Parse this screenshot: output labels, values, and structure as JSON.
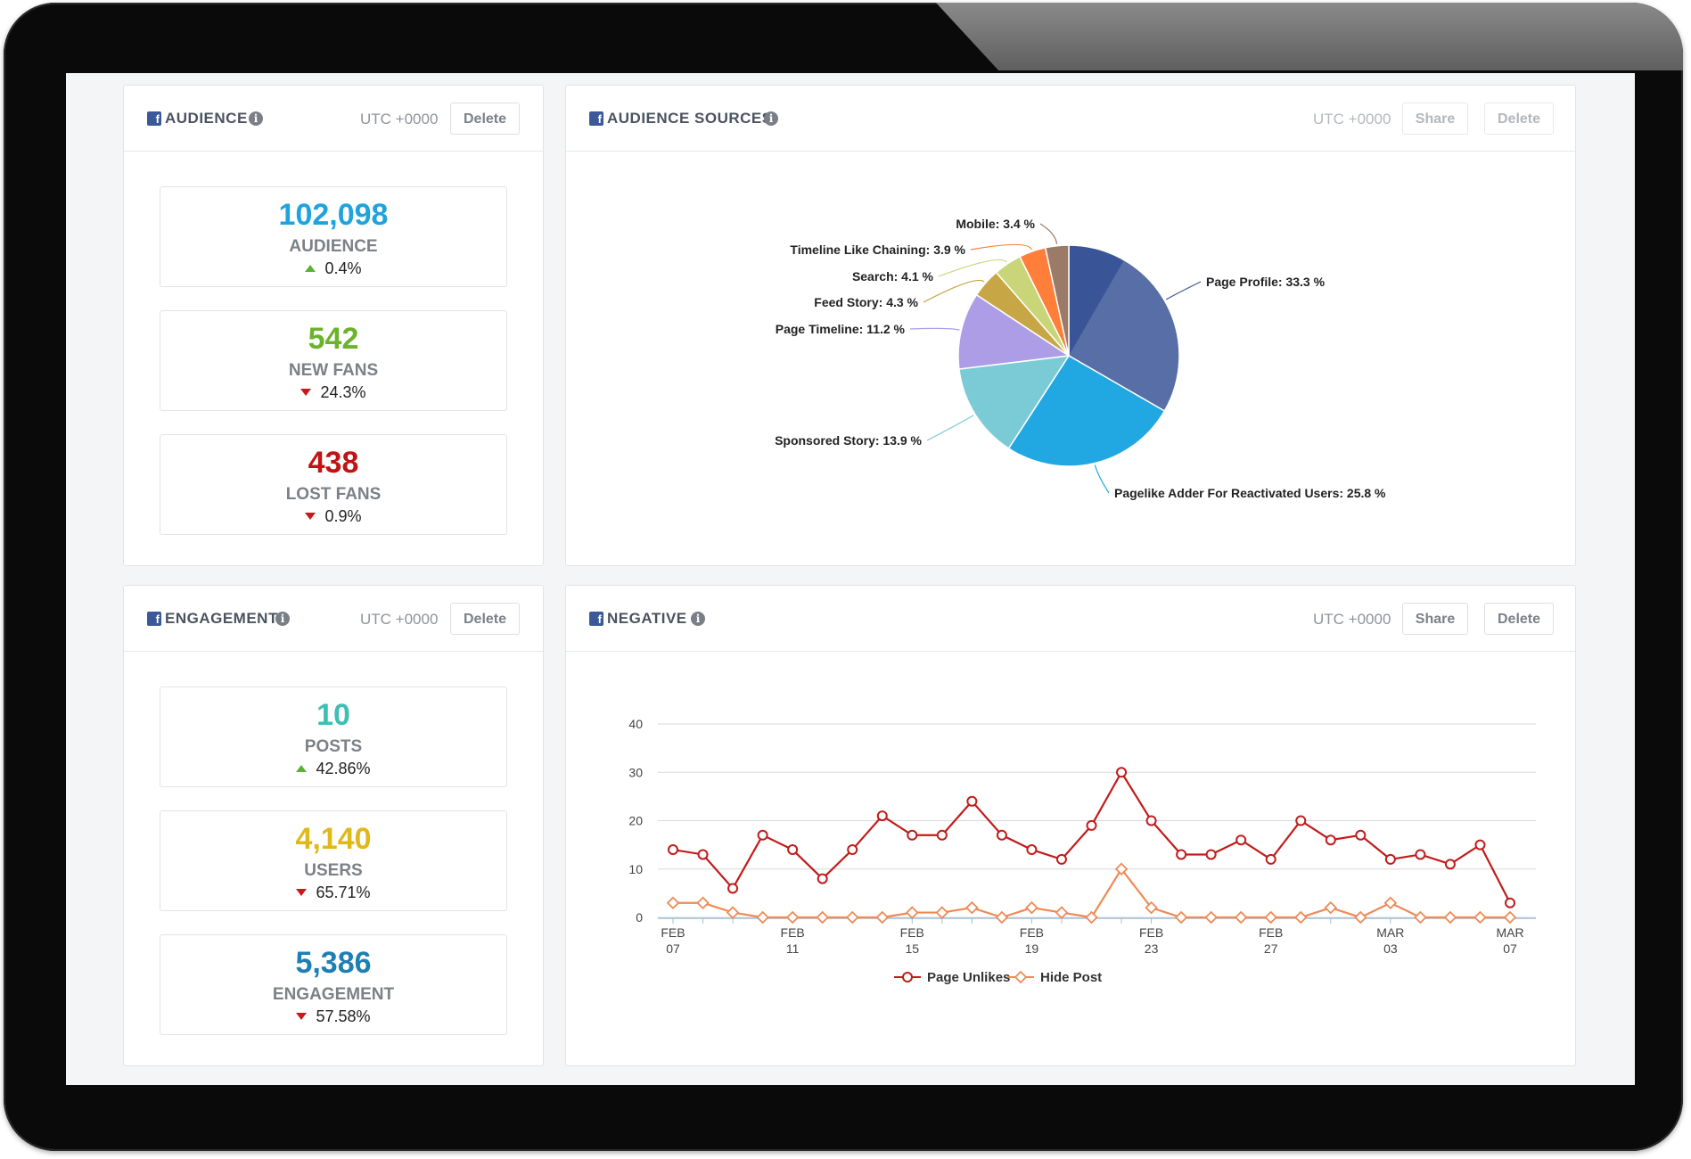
{
  "colors": {
    "audience": "#1fa3dd",
    "new_fans": "#6cb32c",
    "lost_fans": "#c21313",
    "posts": "#3ebfb4",
    "users": "#e0b81a",
    "engagement": "#1e7fb3",
    "facebook": "#3b5998",
    "up": "#5cb332",
    "down": "#c61b1b"
  },
  "audience_panel": {
    "title": "AUDIENCE",
    "icon": "facebook-icon",
    "utc": "UTC +0000",
    "delete_label": "Delete",
    "stats": [
      {
        "value": "102,098",
        "label": "AUDIENCE",
        "change": "0.4%",
        "trend": "up"
      },
      {
        "value": "542",
        "label": "NEW FANS",
        "change": "24.3%",
        "trend": "down"
      },
      {
        "value": "438",
        "label": "LOST FANS",
        "change": "0.9%",
        "trend": "down"
      }
    ]
  },
  "engagement_panel": {
    "title": "ENGAGEMENT",
    "icon": "facebook-icon",
    "utc": "UTC +0000",
    "delete_label": "Delete",
    "stats": [
      {
        "value": "10",
        "label": "POSTS",
        "change": "42.86%",
        "trend": "up"
      },
      {
        "value": "4,140",
        "label": "USERS",
        "change": "65.71%",
        "trend": "down"
      },
      {
        "value": "5,386",
        "label": "ENGAGEMENT",
        "change": "57.58%",
        "trend": "down"
      }
    ]
  },
  "sources_panel": {
    "title": "AUDIENCE SOURCES",
    "utc": "UTC +0000",
    "share_label": "Share",
    "delete_label": "Delete"
  },
  "negative_panel": {
    "title": "NEGATIVE",
    "utc": "UTC +0000",
    "share_label": "Share",
    "delete_label": "Delete"
  },
  "chart_data": [
    {
      "type": "pie",
      "slices": [
        {
          "name": "Page Profile",
          "value": 33.3,
          "label": "Page Profile: 33.3 %",
          "color": "#3a5597"
        },
        {
          "name": "Pagelike Adder For Reactivated Users",
          "value": 25.8,
          "label": "Pagelike Adder For Reactivated Users: 25.8 %",
          "color": "#21a7e2"
        },
        {
          "name": "Sponsored Story",
          "value": 13.9,
          "label": "Sponsored Story: 13.9 %",
          "color": "#7bcbd7"
        },
        {
          "name": "Page Timeline",
          "value": 11.2,
          "label": "Page Timeline: 11.2 %",
          "color": "#ac9de6"
        },
        {
          "name": "Feed Story",
          "value": 4.3,
          "label": "Feed Story: 4.3 %",
          "color": "#c7a645"
        },
        {
          "name": "Search",
          "value": 4.1,
          "label": "Search: 4.1 %",
          "color": "#c8d679"
        },
        {
          "name": "Timeline Like Chaining",
          "value": 3.9,
          "label": "Timeline Like Chaining: 3.9 %",
          "color": "#ff7f3a"
        },
        {
          "name": "Mobile",
          "value": 3.4,
          "label": "Mobile: 3.4 %",
          "color": "#9b7a68"
        }
      ]
    },
    {
      "type": "line",
      "x": [
        "FEB 07",
        "FEB 08",
        "FEB 09",
        "FEB 10",
        "FEB 11",
        "FEB 12",
        "FEB 13",
        "FEB 14",
        "FEB 15",
        "FEB 16",
        "FEB 17",
        "FEB 18",
        "FEB 19",
        "FEB 20",
        "FEB 21",
        "FEB 22",
        "FEB 23",
        "FEB 24",
        "FEB 25",
        "FEB 26",
        "FEB 27",
        "FEB 28",
        "MAR 01",
        "MAR 02",
        "MAR 03",
        "MAR 04",
        "MAR 05",
        "MAR 06",
        "MAR 07"
      ],
      "tick_labels": [
        {
          "top": "FEB",
          "bottom": "07",
          "index": 0
        },
        {
          "top": "FEB",
          "bottom": "11",
          "index": 4
        },
        {
          "top": "FEB",
          "bottom": "15",
          "index": 8
        },
        {
          "top": "FEB",
          "bottom": "19",
          "index": 12
        },
        {
          "top": "FEB",
          "bottom": "23",
          "index": 16
        },
        {
          "top": "FEB",
          "bottom": "27",
          "index": 20
        },
        {
          "top": "MAR",
          "bottom": "03",
          "index": 24
        },
        {
          "top": "MAR",
          "bottom": "07",
          "index": 28
        }
      ],
      "ylim": [
        0,
        40
      ],
      "yticks": [
        "0",
        "10",
        "20",
        "30",
        "40"
      ],
      "grid": true,
      "legend_placement": "bottom-center",
      "series": [
        {
          "name": "Page Unlikes",
          "color": "#c21b1b",
          "marker": "circle",
          "values": [
            14,
            13,
            6,
            17,
            14,
            8,
            14,
            21,
            17,
            17,
            24,
            17,
            14,
            12,
            19,
            30,
            20,
            13,
            13,
            16,
            12,
            20,
            16,
            17,
            12,
            13,
            11,
            15,
            3
          ]
        },
        {
          "name": "Hide Post",
          "color": "#ee8a56",
          "marker": "diamond",
          "values": [
            3,
            3,
            1,
            0,
            0,
            0,
            0,
            0,
            1,
            1,
            2,
            0,
            2,
            1,
            0,
            10,
            2,
            0,
            0,
            0,
            0,
            0,
            2,
            0,
            3,
            0,
            0,
            0,
            0
          ]
        }
      ]
    }
  ]
}
